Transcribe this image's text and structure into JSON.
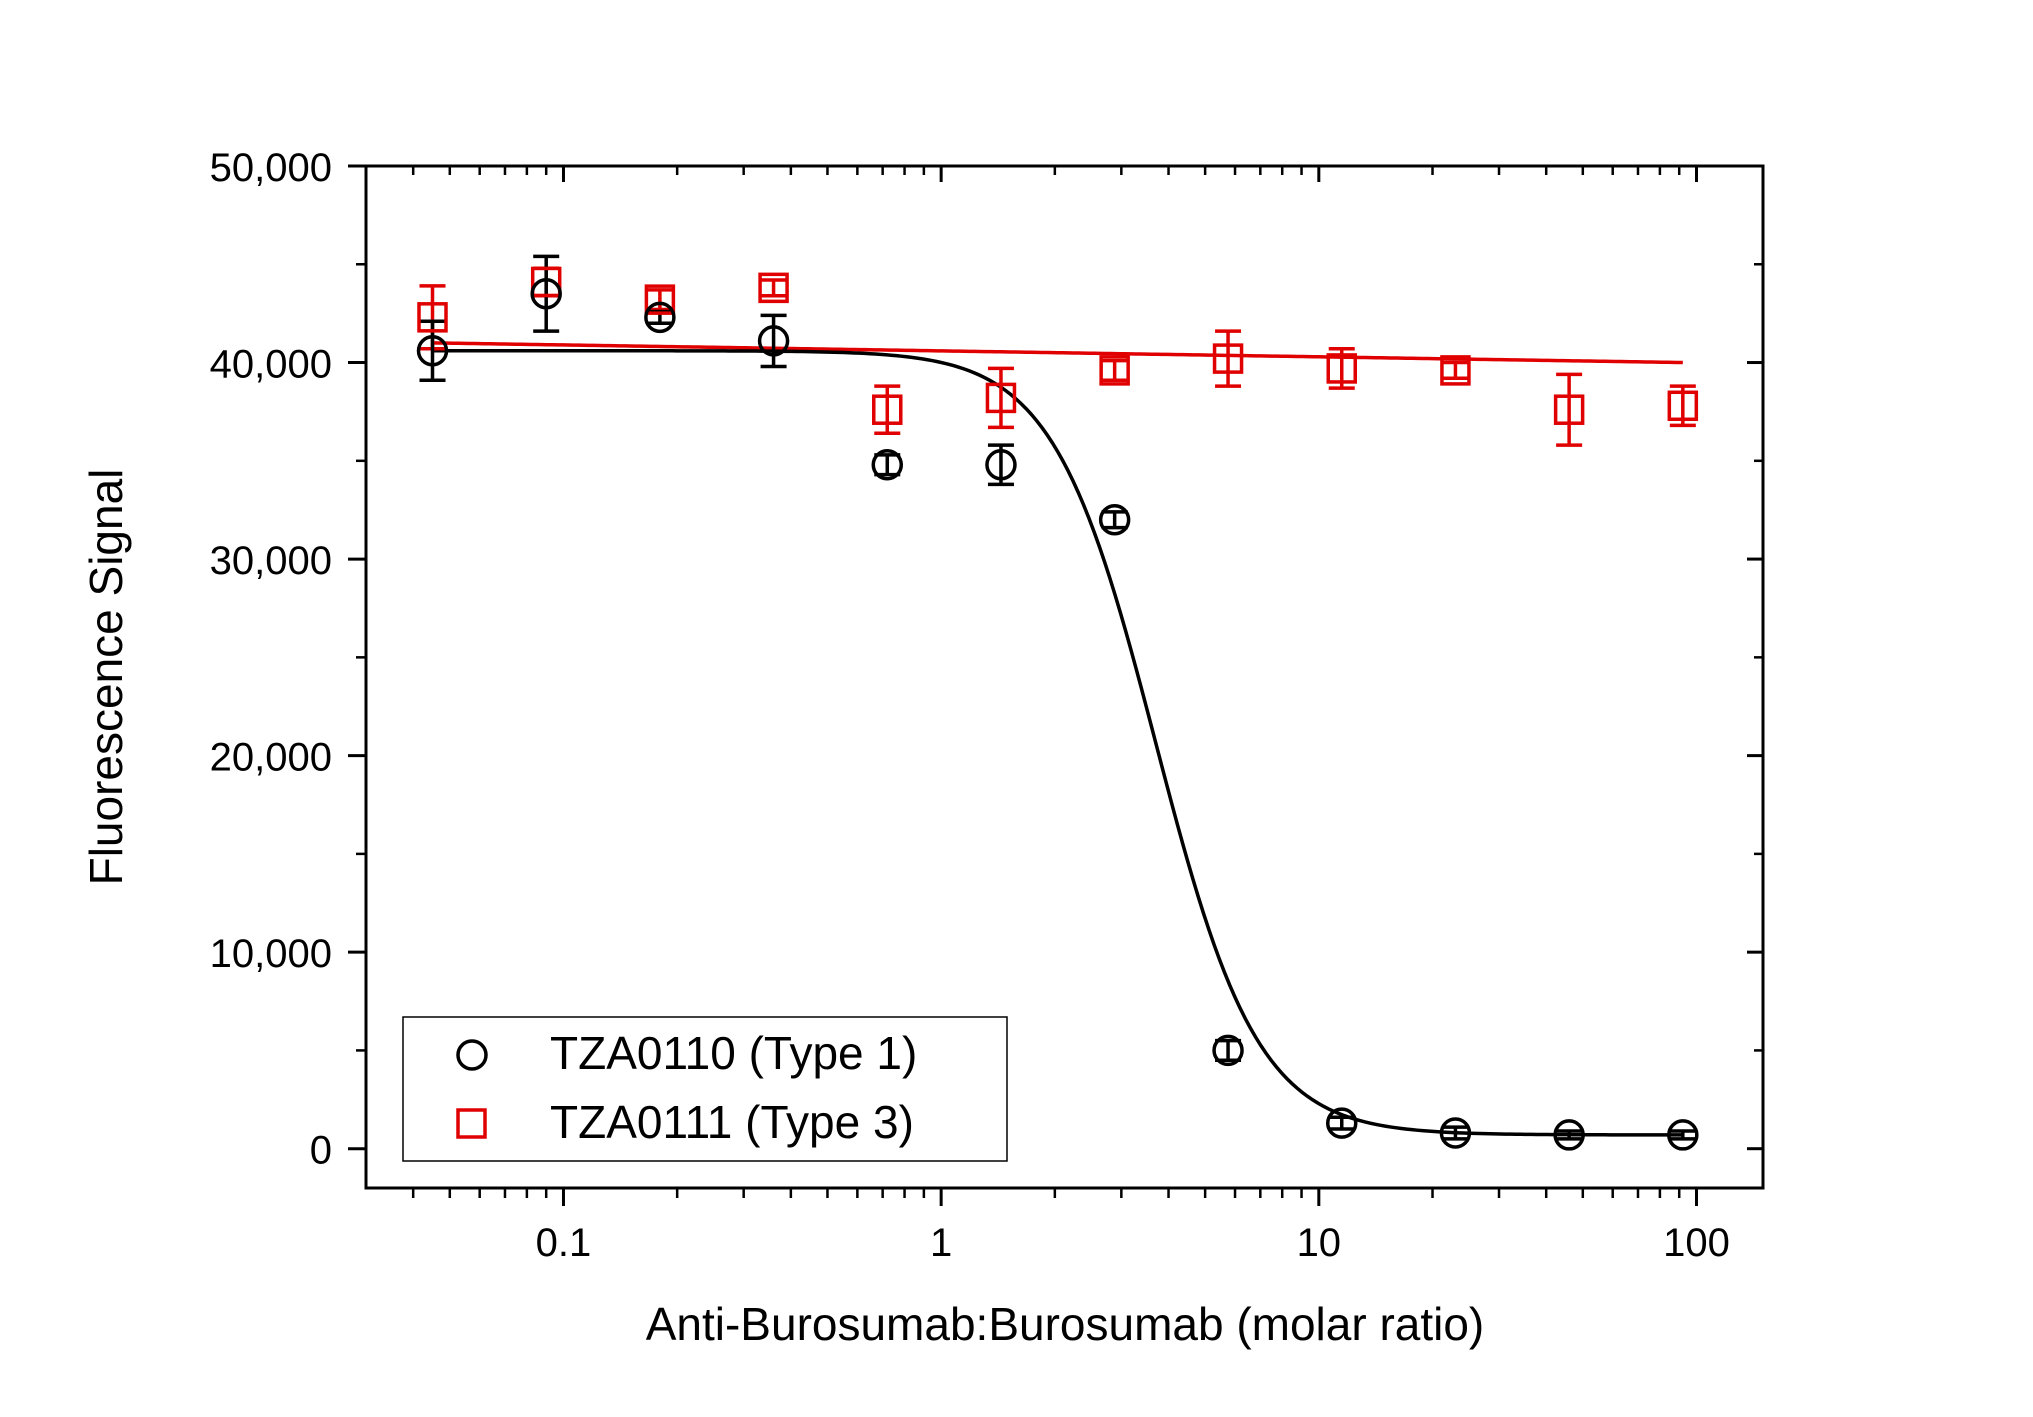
{
  "chart_data": {
    "type": "scatter",
    "xlabel": "Anti-Burosumab:Burosumab (molar ratio)",
    "ylabel": "Fluorescence Signal",
    "xscale": "log",
    "xlim": [
      0.03,
      150
    ],
    "ylim": [
      -2000,
      50000
    ],
    "x_ticks": [
      0.1,
      1,
      10,
      100
    ],
    "x_tick_labels": [
      "0.1",
      "1",
      "10",
      "100"
    ],
    "y_ticks": [
      0,
      10000,
      20000,
      30000,
      40000,
      50000
    ],
    "y_tick_labels": [
      "0",
      "10,000",
      "20,000",
      "30,000",
      "40,000",
      "50,000"
    ],
    "grid": false,
    "legend_position": "bottom-left",
    "series": [
      {
        "name": "TZA0110 (Type 1)",
        "color": "#000000",
        "marker": "circle",
        "x": [
          0.045,
          0.09,
          0.18,
          0.36,
          0.72,
          1.44,
          2.88,
          5.75,
          11.5,
          23,
          46,
          92
        ],
        "y": [
          40600,
          43500,
          42300,
          41100,
          34800,
          34800,
          32000,
          5000,
          1300,
          800,
          700,
          700
        ],
        "err": [
          1500,
          1900,
          300,
          1300,
          500,
          1000,
          400,
          500,
          300,
          300,
          200,
          200
        ],
        "fit": {
          "bottom": 700,
          "top": 40600,
          "ec50": 3.7,
          "hill": 3.2
        }
      },
      {
        "name": "TZA0111 (Type 3)",
        "color": "#e00000",
        "marker": "square",
        "x": [
          0.045,
          0.09,
          0.18,
          0.36,
          0.72,
          1.44,
          2.88,
          5.75,
          11.5,
          23,
          46,
          92
        ],
        "y": [
          42300,
          44100,
          43200,
          43800,
          37600,
          38200,
          39600,
          40200,
          39700,
          39600,
          37600,
          37800
        ],
        "err": [
          1600,
          700,
          500,
          400,
          1200,
          1500,
          500,
          1400,
          1000,
          400,
          1800,
          1000
        ],
        "fit": {
          "start": 41000,
          "end": 40000
        }
      }
    ]
  }
}
